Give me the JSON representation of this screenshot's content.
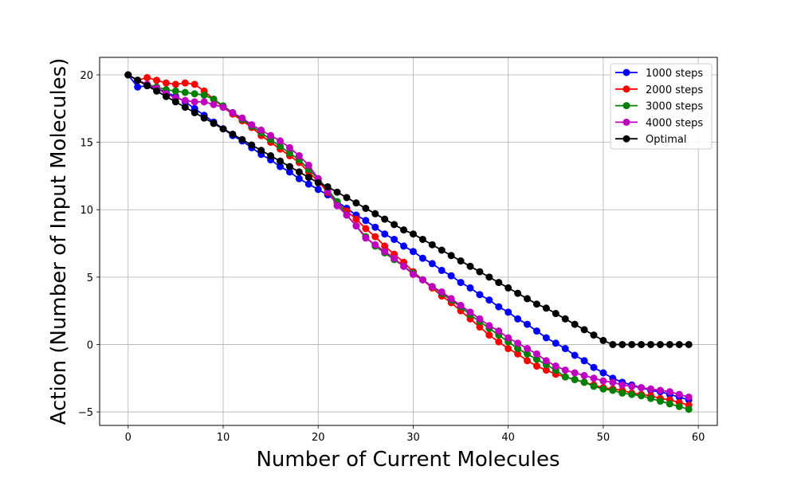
{
  "chart_data": {
    "type": "line",
    "title": "",
    "xlabel": "Number of Current Molecules",
    "ylabel": "Action (Number of Input Molecules)",
    "xlim": [
      -3,
      62
    ],
    "ylim": [
      -6,
      21.3
    ],
    "xticks": [
      0,
      10,
      20,
      30,
      40,
      50,
      60
    ],
    "yticks": [
      -5,
      0,
      5,
      10,
      15,
      20
    ],
    "grid": true,
    "legend_position": "top-right",
    "x": [
      0,
      1,
      2,
      3,
      4,
      5,
      6,
      7,
      8,
      9,
      10,
      11,
      12,
      13,
      14,
      15,
      16,
      17,
      18,
      19,
      20,
      21,
      22,
      23,
      24,
      25,
      26,
      27,
      28,
      29,
      30,
      31,
      32,
      33,
      34,
      35,
      36,
      37,
      38,
      39,
      40,
      41,
      42,
      43,
      44,
      45,
      46,
      47,
      48,
      49,
      50,
      51,
      52,
      53,
      54,
      55,
      56,
      57,
      58,
      59
    ],
    "series": [
      {
        "name": "1000 steps",
        "color": "#0000ff",
        "values": [
          20.0,
          19.1,
          19.2,
          19.0,
          18.7,
          18.4,
          18.0,
          17.5,
          17.0,
          16.5,
          16.0,
          15.5,
          15.1,
          14.6,
          14.1,
          13.7,
          13.2,
          12.8,
          12.3,
          11.9,
          11.5,
          11.1,
          10.6,
          10.1,
          9.6,
          9.2,
          8.7,
          8.2,
          7.8,
          7.3,
          6.9,
          6.4,
          6.0,
          5.5,
          5.1,
          4.6,
          4.2,
          3.7,
          3.3,
          2.8,
          2.4,
          1.9,
          1.5,
          1.0,
          0.5,
          0.1,
          -0.3,
          -0.8,
          -1.2,
          -1.7,
          -2.1,
          -2.5,
          -2.8,
          -3.0,
          -3.2,
          -3.4,
          -3.5,
          -3.7,
          -3.9,
          -4.1
        ]
      },
      {
        "name": "2000 steps",
        "color": "#ff0000",
        "values": [
          20.0,
          19.6,
          19.8,
          19.6,
          19.4,
          19.3,
          19.4,
          19.3,
          18.8,
          18.2,
          17.6,
          17.1,
          16.6,
          16.1,
          15.5,
          15.0,
          14.5,
          14.0,
          13.5,
          12.8,
          12.1,
          11.3,
          10.5,
          9.9,
          9.3,
          8.6,
          8.0,
          7.3,
          6.7,
          6.1,
          5.4,
          4.8,
          4.2,
          3.6,
          3.1,
          2.5,
          1.9,
          1.3,
          0.7,
          0.2,
          -0.3,
          -0.7,
          -1.2,
          -1.6,
          -1.9,
          -2.2,
          -2.4,
          -2.6,
          -2.8,
          -3.0,
          -3.2,
          -3.3,
          -3.4,
          -3.6,
          -3.7,
          -3.8,
          -4.0,
          -4.1,
          -4.3,
          -4.5
        ]
      },
      {
        "name": "3000 steps",
        "color": "#008000",
        "values": [
          20.0,
          19.6,
          19.3,
          19.1,
          18.9,
          18.8,
          18.7,
          18.6,
          18.5,
          18.2,
          17.7,
          17.2,
          16.7,
          16.2,
          15.7,
          15.2,
          14.7,
          14.2,
          13.7,
          13.0,
          12.3,
          11.5,
          10.6,
          9.6,
          8.8,
          8.0,
          7.3,
          6.8,
          6.3,
          5.8,
          5.3,
          4.8,
          4.3,
          3.8,
          3.3,
          2.8,
          2.2,
          1.7,
          1.2,
          0.7,
          0.2,
          -0.3,
          -0.7,
          -1.1,
          -1.5,
          -1.9,
          -2.4,
          -2.6,
          -2.8,
          -3.1,
          -3.3,
          -3.4,
          -3.6,
          -3.7,
          -3.8,
          -4.0,
          -4.2,
          -4.4,
          -4.6,
          -4.8
        ]
      },
      {
        "name": "4000 steps",
        "color": "#bf00bf",
        "values": [
          20.0,
          19.6,
          19.3,
          19.0,
          18.6,
          18.3,
          18.1,
          18.0,
          18.0,
          17.8,
          17.6,
          17.2,
          16.8,
          16.3,
          15.9,
          15.5,
          15.1,
          14.6,
          14.0,
          13.3,
          12.3,
          11.4,
          10.3,
          9.6,
          8.8,
          7.9,
          7.4,
          6.9,
          6.4,
          5.8,
          5.2,
          4.8,
          4.3,
          3.9,
          3.4,
          2.9,
          2.4,
          1.9,
          1.4,
          1.0,
          0.5,
          0.1,
          -0.3,
          -0.7,
          -1.2,
          -1.6,
          -1.9,
          -2.1,
          -2.3,
          -2.5,
          -2.7,
          -2.8,
          -3.0,
          -3.1,
          -3.2,
          -3.3,
          -3.4,
          -3.5,
          -3.7,
          -3.9
        ]
      },
      {
        "name": "Optimal",
        "color": "#000000",
        "values": [
          20.0,
          19.6,
          19.2,
          18.8,
          18.4,
          18.0,
          17.6,
          17.2,
          16.8,
          16.4,
          16.0,
          15.6,
          15.2,
          14.8,
          14.4,
          14.0,
          13.6,
          13.2,
          12.8,
          12.4,
          12.0,
          11.7,
          11.3,
          10.9,
          10.5,
          10.1,
          9.7,
          9.3,
          8.9,
          8.5,
          8.2,
          7.8,
          7.4,
          7.0,
          6.6,
          6.2,
          5.8,
          5.4,
          5.0,
          4.6,
          4.2,
          3.8,
          3.4,
          3.0,
          2.7,
          2.3,
          1.9,
          1.5,
          1.1,
          0.7,
          0.3,
          0.0,
          0.0,
          0.0,
          0.0,
          0.0,
          0.0,
          0.0,
          0.0,
          0.0
        ]
      }
    ]
  }
}
